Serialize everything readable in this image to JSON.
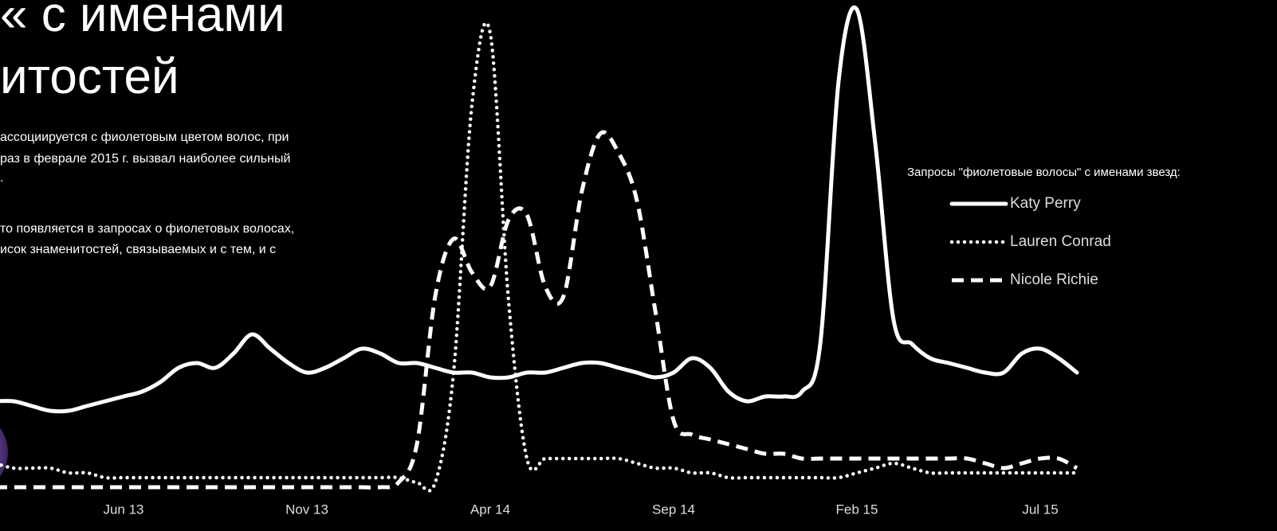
{
  "article": {
    "title_lines": [
      "« с именами",
      "итостей"
    ],
    "paragraph_lines": [
      "ассоциируется с фиолетовым цветом волос, при",
      "раз в феврале 2015 г. вызвал наиболее сильный",
      ".",
      "то появляется в запросах о фиолетовых волосах,",
      "исок знаменитостей, связываемых и с тем, и с"
    ]
  },
  "chart_data": {
    "type": "line",
    "legend_title": "Запросы \"фиолетовые волосы\" с именами звезд:",
    "categories": [
      null,
      null,
      null,
      null,
      null,
      null,
      null,
      "Jun 13",
      null,
      null,
      null,
      null,
      null,
      null,
      null,
      null,
      null,
      "Nov 13",
      null,
      null,
      null,
      null,
      null,
      null,
      null,
      null,
      null,
      "Apr 14",
      null,
      null,
      null,
      null,
      null,
      null,
      null,
      null,
      null,
      "Sep 14",
      null,
      null,
      null,
      null,
      null,
      null,
      null,
      null,
      null,
      "Feb 15",
      null,
      null,
      null,
      null,
      null,
      null,
      null,
      null,
      null,
      "Jul 15",
      null,
      null
    ],
    "ylim": [
      0,
      100
    ],
    "series": [
      {
        "name": "Katy Perry",
        "color": "#ffffff",
        "line_style": "solid",
        "values": [
          18,
          18,
          17,
          16,
          16,
          17,
          18,
          19,
          20,
          22,
          25,
          26,
          25,
          28,
          32,
          29,
          26,
          24,
          25,
          27,
          29,
          28,
          26,
          26,
          25,
          24,
          24,
          23,
          23,
          24,
          24,
          25,
          26,
          26,
          25,
          24,
          23,
          24,
          27,
          25,
          20,
          18,
          19,
          19,
          20,
          30,
          85,
          100,
          72,
          35,
          30,
          27,
          26,
          25,
          24,
          24,
          28,
          29,
          27,
          24
        ]
      },
      {
        "name": "Lauren Conrad",
        "color": "#ffffff",
        "line_style": "dotted",
        "values": [
          5,
          4,
          4,
          4,
          3,
          3,
          2,
          2,
          2,
          2,
          2,
          2,
          2,
          2,
          2,
          2,
          2,
          2,
          2,
          2,
          2,
          2,
          2,
          1,
          1,
          24,
          80,
          95,
          39,
          6,
          6,
          6,
          6,
          6,
          6,
          5,
          4,
          4,
          3,
          3,
          2,
          2,
          2,
          2,
          2,
          2,
          2,
          3,
          4,
          5,
          4,
          3,
          3,
          3,
          3,
          3,
          3,
          3,
          3,
          3
        ]
      },
      {
        "name": "Nicole Richie",
        "color": "#ffffff",
        "line_style": "dashed",
        "values": [
          0,
          0,
          0,
          0,
          0,
          0,
          0,
          0,
          0,
          0,
          0,
          0,
          0,
          0,
          0,
          0,
          0,
          0,
          0,
          0,
          0,
          0,
          1,
          9,
          40,
          52,
          45,
          42,
          56,
          57,
          42,
          40,
          62,
          74,
          70,
          60,
          37,
          14,
          11,
          10,
          9,
          8,
          7,
          7,
          6,
          6,
          6,
          6,
          6,
          6,
          6,
          6,
          6,
          6,
          5,
          4,
          5,
          6,
          6,
          4
        ]
      }
    ]
  }
}
